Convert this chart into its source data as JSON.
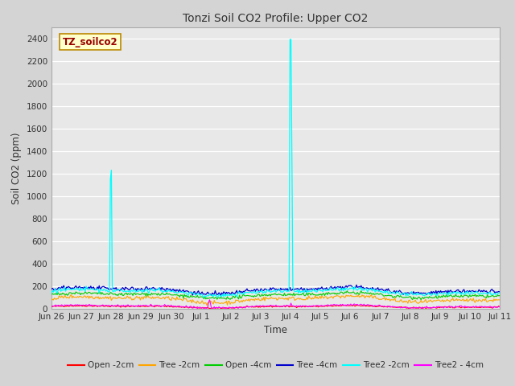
{
  "title": "Tonzi Soil CO2 Profile: Upper CO2",
  "ylabel": "Soil CO2 (ppm)",
  "xlabel": "Time",
  "legend_label": "TZ_soilco2",
  "ylim": [
    0,
    2500
  ],
  "yticks": [
    0,
    200,
    400,
    600,
    800,
    1000,
    1200,
    1400,
    1600,
    1800,
    2000,
    2200,
    2400
  ],
  "series": [
    {
      "label": "Open -2cm",
      "color": "#ff0000"
    },
    {
      "label": "Tree -2cm",
      "color": "#ffa500"
    },
    {
      "label": "Open -4cm",
      "color": "#00cc00"
    },
    {
      "label": "Tree -4cm",
      "color": "#0000cc"
    },
    {
      "label": "Tree2 -2cm",
      "color": "#00ffff"
    },
    {
      "label": "Tree2 - 4cm",
      "color": "#ff00ff"
    }
  ],
  "fig_bg_color": "#d4d4d4",
  "plot_bg_color": "#e8e8e8",
  "grid_color": "#ffffff",
  "title_color": "#333333",
  "axis_label_color": "#333333",
  "n_points": 480,
  "x_start": 0,
  "x_end": 15,
  "xtick_labels": [
    "Jun 26",
    "Jun 27",
    "Jun 28",
    "Jun 29",
    "Jun 30",
    "Jul 1",
    "Jul 2",
    "Jul 3",
    "Jul 4",
    "Jul 5",
    "Jul 6",
    "Jul 7",
    "Jul 8",
    "Jul 9",
    "Jul 10",
    "Jul 11"
  ],
  "xtick_positions": [
    0,
    1,
    2,
    3,
    4,
    5,
    6,
    7,
    8,
    9,
    10,
    11,
    12,
    13,
    14,
    15
  ]
}
